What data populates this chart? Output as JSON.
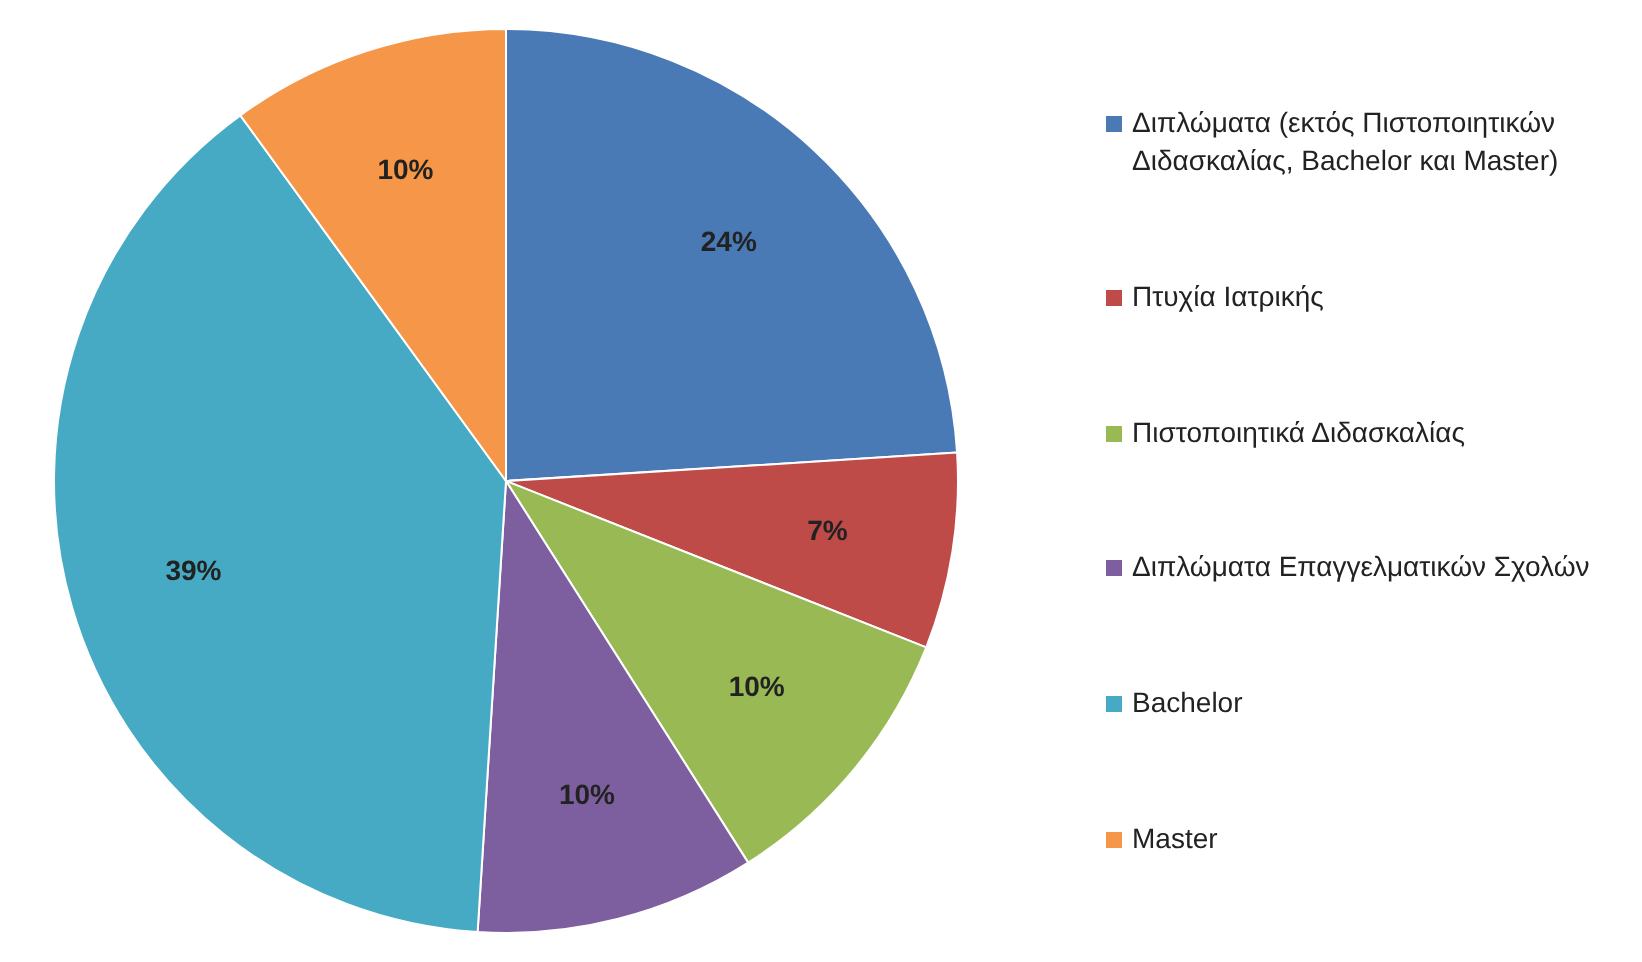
{
  "chart_data": {
    "type": "pie",
    "categories": [
      "Διπλώματα (εκτός Πιστοποιητικών Διδασκαλίας, Bachelor και Master)",
      "Πτυχία Ιατρικής",
      "Πιστοποιητικά Διδασκαλίας",
      "Διπλώματα Επαγγελματικών Σχολών",
      "Bachelor",
      "Master"
    ],
    "values": [
      24,
      7,
      10,
      10,
      39,
      10
    ],
    "value_labels": [
      "24%",
      "7%",
      "10%",
      "10%",
      "39%",
      "10%"
    ],
    "colors": [
      "#4a7ab5",
      "#be4b48",
      "#98b954",
      "#7d5fa0",
      "#46aac4",
      "#f59648"
    ],
    "legend": "right"
  }
}
